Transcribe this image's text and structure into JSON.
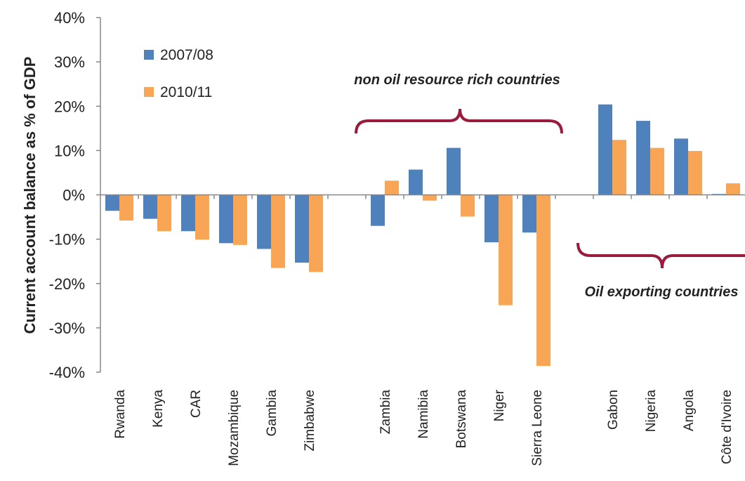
{
  "chart_data": {
    "type": "bar",
    "y_label": "Current account balance as % of GDP",
    "annotations": [
      "non oil resource rich countries",
      "Oil exporting countries"
    ],
    "categories": [
      "Rwanda",
      "Kenya",
      "CAR",
      "Mozambique",
      "Gambia",
      "Zimbabwe",
      null,
      "Zambia",
      "Namibia",
      "Botswana",
      "Niger",
      "Sierra Leone",
      null,
      "Gabon",
      "Nigeria",
      "Angola",
      "Côte d'Ivoire"
    ],
    "series": [
      {
        "name": "2007/08",
        "color": "#4f81bd",
        "values": [
          -3.6,
          -5.4,
          -8.2,
          -10.9,
          -12.2,
          -15.3,
          null,
          -7.0,
          5.7,
          10.6,
          -10.7,
          -8.5,
          null,
          20.4,
          16.7,
          12.7,
          0.2
        ]
      },
      {
        "name": "2010/11",
        "color": "#f9a556",
        "values": [
          -5.8,
          -8.2,
          -10.1,
          -11.3,
          -16.5,
          -17.4,
          null,
          3.2,
          -1.3,
          -4.9,
          -24.9,
          -38.6,
          null,
          12.4,
          10.6,
          9.9,
          2.6
        ]
      }
    ],
    "ylim": [
      -40,
      40
    ],
    "yticks": [
      {
        "value": -40,
        "label": "-40%"
      },
      {
        "value": -30,
        "label": "-30%"
      },
      {
        "value": -20,
        "label": "-20%"
      },
      {
        "value": -10,
        "label": "-10%"
      },
      {
        "value": 0,
        "label": "0%"
      },
      {
        "value": 10,
        "label": "10%"
      },
      {
        "value": 20,
        "label": "20%"
      },
      {
        "value": 30,
        "label": "30%"
      },
      {
        "value": 40,
        "label": "40%"
      }
    ],
    "grid": false,
    "legend": "top-left"
  }
}
